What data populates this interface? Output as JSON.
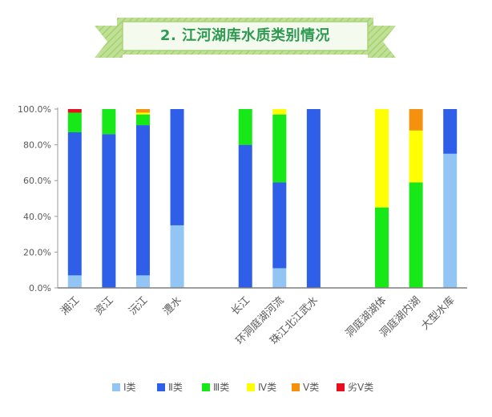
{
  "header": {
    "title": "2. 江河湖库水质类别情况",
    "colors": {
      "ribbon": "#b9dd8e",
      "ribbon_stripe": "#9fcc6c",
      "panel_border": "#a9d27a",
      "title_text": "#2f9a52"
    }
  },
  "chart_data": {
    "type": "bar",
    "stacked": true,
    "percent": true,
    "categories": [
      "湘江",
      "资江",
      "沅江",
      "澧水",
      "",
      "长江",
      "环洞庭湖河流",
      "珠江北江武水",
      "",
      "洞庭湖湖体",
      "洞庭湖内湖",
      "大型水库"
    ],
    "ylim": [
      0,
      100
    ],
    "yticks": [
      0,
      20,
      40,
      60,
      80,
      100
    ],
    "ytick_labels": [
      "0.0%",
      "20.0%",
      "40.0%",
      "60.0%",
      "80.0%",
      "100.0%"
    ],
    "grid": false,
    "legend_position": "bottom",
    "series": [
      {
        "name": "Ⅰ类",
        "color": "#92c5f4",
        "values": [
          7,
          0,
          7,
          35,
          null,
          0,
          11,
          0,
          null,
          0,
          0,
          75
        ]
      },
      {
        "name": "Ⅱ类",
        "color": "#2f5fe8",
        "values": [
          80,
          86,
          84,
          65,
          null,
          80,
          48,
          100,
          null,
          0,
          0,
          25
        ]
      },
      {
        "name": "Ⅲ类",
        "color": "#17e817",
        "values": [
          11,
          14,
          6,
          0,
          null,
          20,
          38,
          0,
          null,
          45,
          59,
          0
        ]
      },
      {
        "name": "Ⅳ类",
        "color": "#ffff00",
        "values": [
          0,
          0,
          1,
          0,
          null,
          0,
          3,
          0,
          null,
          55,
          29,
          0
        ]
      },
      {
        "name": "Ⅴ类",
        "color": "#f6900f",
        "values": [
          0,
          0,
          2,
          0,
          null,
          0,
          0,
          0,
          null,
          0,
          12,
          0
        ]
      },
      {
        "name": "劣Ⅴ类",
        "color": "#e8101e",
        "values": [
          2,
          0,
          0,
          0,
          null,
          0,
          0,
          0,
          null,
          0,
          0,
          0
        ]
      }
    ]
  }
}
